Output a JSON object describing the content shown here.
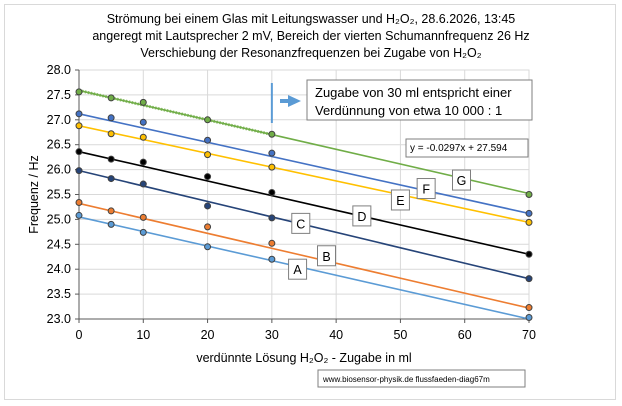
{
  "chart_data": {
    "type": "line",
    "title_lines": [
      "Strömung bei einem Glas mit  Leitungswasser und H₂O₂, 28.6.2026, 13:45",
      "angeregt mit Lautsprecher 2 mV,  Bereich der vierten Schumannfrequenz 26 Hz",
      "Verschiebung der Resonanzfrequenzen bei Zugabe von H₂O₂"
    ],
    "xlabel": "verdünnte Lösung H₂O₂  - Zugabe in ml",
    "ylabel": "Frequenz / Hz",
    "xlim": [
      0,
      70
    ],
    "ylim": [
      23.0,
      28.0
    ],
    "x_ticks": [
      "0",
      "10",
      "20",
      "30",
      "40",
      "50",
      "60",
      "70"
    ],
    "y_ticks": [
      "23.0",
      "23.5",
      "24.0",
      "24.5",
      "25.0",
      "25.5",
      "26.0",
      "26.5",
      "27.0",
      "27.5",
      "28.0"
    ],
    "grid": true,
    "series": [
      {
        "name": "A",
        "color": "#5B9BD5",
        "x": [
          0,
          5,
          10,
          20,
          30,
          70
        ],
        "y": [
          25.08,
          24.9,
          24.74,
          24.45,
          24.2,
          23.03
        ],
        "trend": [
          25.05,
          23.0
        ]
      },
      {
        "name": "B",
        "color": "#ED7D31",
        "x": [
          0,
          5,
          10,
          20,
          30,
          70
        ],
        "y": [
          25.34,
          25.17,
          25.04,
          24.85,
          24.52,
          23.23
        ],
        "trend": [
          25.32,
          23.22
        ]
      },
      {
        "name": "C",
        "color": "#264478",
        "x": [
          0,
          5,
          10,
          20,
          30,
          70
        ],
        "y": [
          25.98,
          25.82,
          25.71,
          25.27,
          25.03,
          23.81
        ],
        "trend": [
          25.98,
          23.81
        ]
      },
      {
        "name": "D",
        "color": "#000000",
        "x": [
          0,
          5,
          10,
          20,
          30,
          70
        ],
        "y": [
          26.36,
          26.21,
          26.15,
          25.86,
          25.54,
          24.3
        ],
        "trend": [
          26.36,
          24.3
        ]
      },
      {
        "name": "E",
        "color": "#FFC000",
        "x": [
          0,
          5,
          10,
          20,
          30,
          70
        ],
        "y": [
          26.88,
          26.72,
          26.65,
          26.3,
          26.05,
          24.94
        ],
        "trend": [
          26.88,
          24.94
        ]
      },
      {
        "name": "F",
        "color": "#4472C4",
        "x": [
          0,
          5,
          10,
          20,
          30,
          70
        ],
        "y": [
          27.12,
          27.04,
          26.95,
          26.59,
          26.33,
          25.12
        ],
        "trend": [
          27.12,
          25.12
        ]
      },
      {
        "name": "G",
        "color": "#70AD47",
        "x": [
          0,
          5,
          10,
          20,
          30,
          70
        ],
        "y": [
          27.56,
          27.44,
          27.35,
          27.0,
          26.71,
          25.5
        ],
        "trend": [
          27.59,
          25.52
        ]
      }
    ],
    "series_labels": [
      {
        "text": "A",
        "x": 34.0,
        "y": 24.0
      },
      {
        "text": "B",
        "x": 38.5,
        "y": 24.27
      },
      {
        "text": "C",
        "x": 34.5,
        "y": 24.92
      },
      {
        "text": "D",
        "x": 44.0,
        "y": 25.07
      },
      {
        "text": "E",
        "x": 50.0,
        "y": 25.39
      },
      {
        "text": "F",
        "x": 54.0,
        "y": 25.62
      },
      {
        "text": "G",
        "x": 59.5,
        "y": 25.79
      }
    ],
    "annotation": {
      "lines": [
        "Zugabe von 30 ml entspricht einer",
        "Verdünnung  von etwa 10 000 : 1"
      ],
      "marker_x": 30
    },
    "equation": "y = -0.0297x + 27.594",
    "source": "www.biosensor-physik.de  flussfaeden-diag67m"
  }
}
